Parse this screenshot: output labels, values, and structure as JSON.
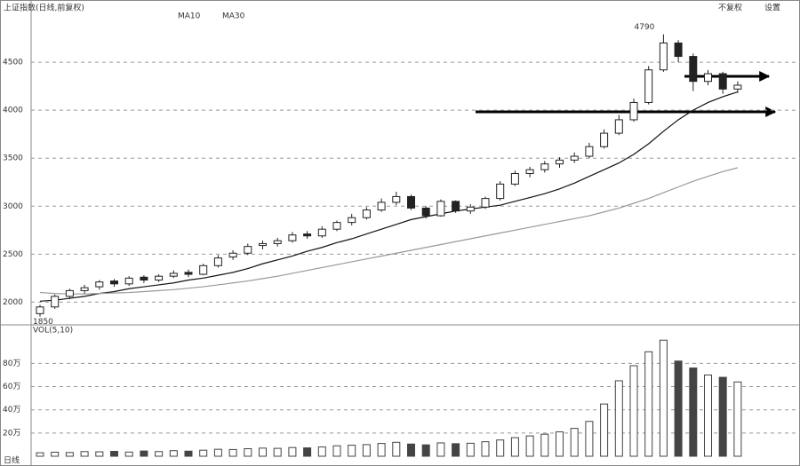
{
  "chart_data": {
    "type": "candlestick",
    "title": "上证指数(日线,前复权)",
    "toolbar": [
      "不复权",
      "设置"
    ],
    "footer": "日线",
    "up_color": "#ffffff",
    "down_color": "#222222",
    "ylim": [
      1800,
      5000
    ],
    "yticks": [
      2000,
      2500,
      3000,
      3500,
      4000,
      4500
    ],
    "grid": true,
    "candles": [
      [
        1880,
        1970,
        1850,
        1950
      ],
      [
        1950,
        2080,
        1930,
        2060
      ],
      [
        2060,
        2140,
        2030,
        2120
      ],
      [
        2120,
        2180,
        2090,
        2150
      ],
      [
        2160,
        2230,
        2130,
        2210
      ],
      [
        2220,
        2240,
        2160,
        2190
      ],
      [
        2190,
        2270,
        2170,
        2250
      ],
      [
        2260,
        2280,
        2200,
        2230
      ],
      [
        2230,
        2290,
        2210,
        2270
      ],
      [
        2270,
        2330,
        2250,
        2300
      ],
      [
        2310,
        2340,
        2260,
        2290
      ],
      [
        2290,
        2400,
        2280,
        2380
      ],
      [
        2380,
        2490,
        2360,
        2460
      ],
      [
        2470,
        2540,
        2440,
        2510
      ],
      [
        2510,
        2610,
        2490,
        2580
      ],
      [
        2590,
        2640,
        2550,
        2610
      ],
      [
        2610,
        2670,
        2580,
        2640
      ],
      [
        2640,
        2730,
        2620,
        2700
      ],
      [
        2710,
        2740,
        2660,
        2690
      ],
      [
        2690,
        2790,
        2670,
        2760
      ],
      [
        2760,
        2850,
        2740,
        2830
      ],
      [
        2830,
        2920,
        2800,
        2880
      ],
      [
        2880,
        2990,
        2860,
        2960
      ],
      [
        2960,
        3080,
        2940,
        3040
      ],
      [
        3040,
        3150,
        3010,
        3100
      ],
      [
        3100,
        3120,
        2960,
        2980
      ],
      [
        2980,
        3000,
        2870,
        2900
      ],
      [
        2900,
        3070,
        2890,
        3050
      ],
      [
        3050,
        3060,
        2930,
        2950
      ],
      [
        2950,
        3020,
        2920,
        2990
      ],
      [
        2990,
        3100,
        2970,
        3080
      ],
      [
        3080,
        3260,
        3060,
        3230
      ],
      [
        3230,
        3370,
        3210,
        3340
      ],
      [
        3340,
        3410,
        3300,
        3380
      ],
      [
        3380,
        3470,
        3350,
        3440
      ],
      [
        3440,
        3510,
        3400,
        3480
      ],
      [
        3480,
        3560,
        3450,
        3520
      ],
      [
        3520,
        3660,
        3500,
        3620
      ],
      [
        3620,
        3800,
        3600,
        3760
      ],
      [
        3760,
        3950,
        3740,
        3900
      ],
      [
        3900,
        4120,
        3880,
        4080
      ],
      [
        4080,
        4460,
        4060,
        4420
      ],
      [
        4420,
        4790,
        4400,
        4700
      ],
      [
        4700,
        4730,
        4500,
        4560
      ],
      [
        4560,
        4590,
        4200,
        4300
      ],
      [
        4300,
        4420,
        4260,
        4380
      ],
      [
        4380,
        4400,
        4170,
        4220
      ],
      [
        4220,
        4300,
        4180,
        4260
      ]
    ],
    "series": [
      {
        "name": "MA10",
        "color": "#111111",
        "values": [
          2010,
          2020,
          2040,
          2060,
          2090,
          2110,
          2140,
          2160,
          2180,
          2200,
          2230,
          2250,
          2280,
          2310,
          2350,
          2400,
          2440,
          2480,
          2530,
          2570,
          2620,
          2660,
          2710,
          2760,
          2810,
          2860,
          2890,
          2920,
          2950,
          2970,
          2990,
          3010,
          3050,
          3090,
          3130,
          3180,
          3240,
          3310,
          3380,
          3450,
          3540,
          3650,
          3780,
          3900,
          4000,
          4080,
          4140,
          4190
        ]
      },
      {
        "name": "MA30",
        "color": "#999999",
        "values": [
          2100,
          2090,
          2085,
          2085,
          2090,
          2095,
          2100,
          2110,
          2120,
          2130,
          2145,
          2160,
          2180,
          2200,
          2220,
          2245,
          2270,
          2300,
          2330,
          2360,
          2390,
          2420,
          2450,
          2480,
          2510,
          2540,
          2570,
          2600,
          2630,
          2660,
          2690,
          2720,
          2750,
          2780,
          2810,
          2840,
          2870,
          2900,
          2940,
          2980,
          3030,
          3080,
          3140,
          3200,
          3260,
          3310,
          3360,
          3400
        ]
      }
    ],
    "volume": {
      "title": "VOL(5,10)",
      "color": "#444444",
      "ylim": [
        0,
        1040000
      ],
      "yticks": [
        {
          "value": 200000,
          "label": "20万"
        },
        {
          "value": 400000,
          "label": "40万"
        },
        {
          "value": 600000,
          "label": "60万"
        },
        {
          "value": 800000,
          "label": "80万"
        }
      ],
      "values": [
        30000,
        35000,
        32000,
        40000,
        38000,
        42000,
        36000,
        45000,
        40000,
        48000,
        44000,
        52000,
        60000,
        58000,
        65000,
        70000,
        68000,
        75000,
        72000,
        80000,
        90000,
        95000,
        100000,
        110000,
        120000,
        105000,
        98000,
        115000,
        108000,
        112000,
        125000,
        140000,
        160000,
        175000,
        190000,
        210000,
        240000,
        300000,
        450000,
        650000,
        780000,
        900000,
        1000000,
        820000,
        760000,
        700000,
        680000,
        640000
      ]
    }
  }
}
